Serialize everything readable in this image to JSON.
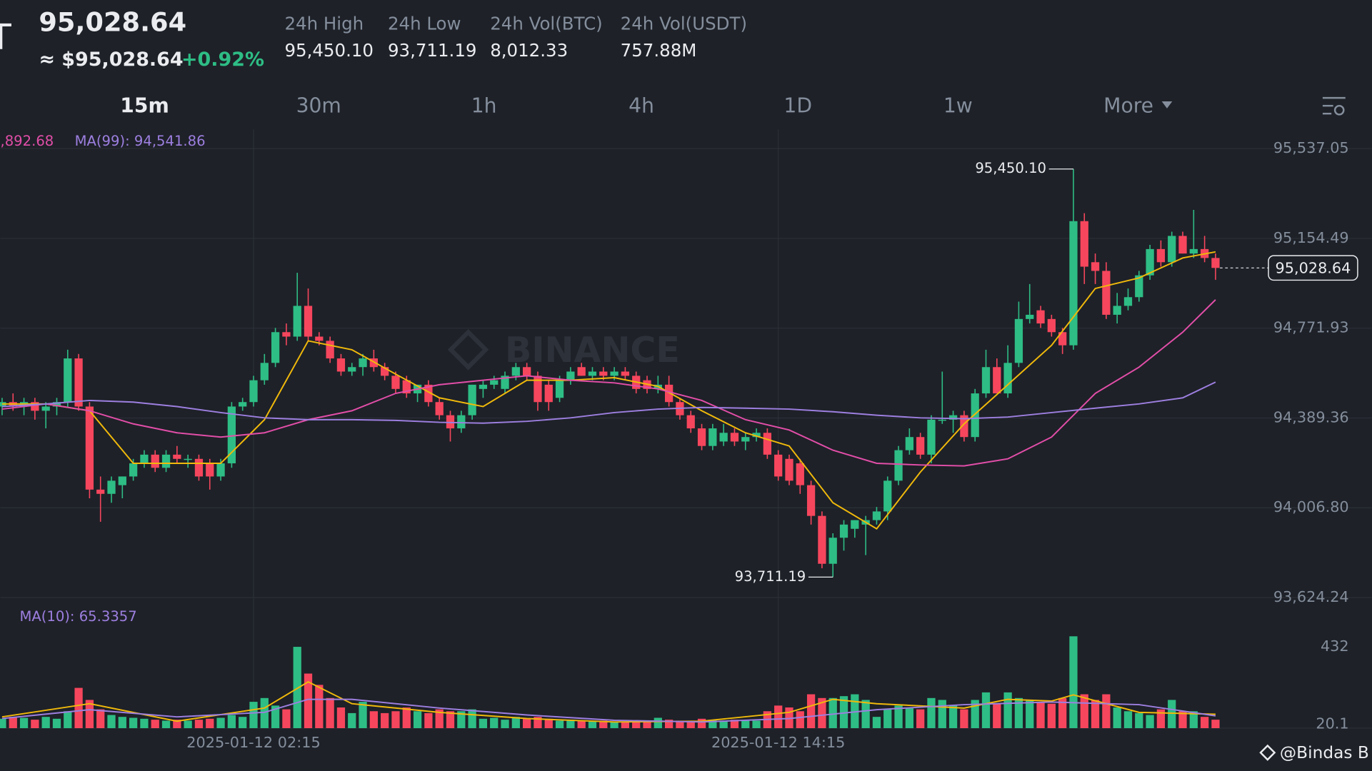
{
  "header": {
    "symbol_fragment": "T",
    "price": "95,028.64",
    "price_usd": "≈ $95,028.64",
    "change": "+0.92%",
    "stats": [
      {
        "label": "24h High",
        "value": "95,450.10"
      },
      {
        "label": "24h Low",
        "value": "93,711.19"
      },
      {
        "label": "24h Vol(BTC)",
        "value": "8,012.33"
      },
      {
        "label": "24h Vol(USDT)",
        "value": "757.88M"
      }
    ]
  },
  "timeframes": [
    "15m",
    "30m",
    "1h",
    "4h",
    "1D",
    "1w",
    "More"
  ],
  "footer": "@Bindas B",
  "chart_data": {
    "type": "candlestick",
    "watermark": "BINANCE",
    "up_color": "#2ebd85",
    "down_color": "#f6465d",
    "ylim": [
      93589,
      95619
    ],
    "yticks": [
      {
        "value": 95537.05,
        "label": "95,537.05"
      },
      {
        "value": 95154.49,
        "label": "95,154.49"
      },
      {
        "value": 94771.93,
        "label": "94,771.93"
      },
      {
        "value": 94389.36,
        "label": "94,389.36"
      },
      {
        "value": 94006.8,
        "label": "94,006.80"
      },
      {
        "value": 93624.24,
        "label": "93,624.24"
      }
    ],
    "grid": true,
    "current_price": 95028.64,
    "current_price_label": "95,028.64",
    "annotations": [
      {
        "value": 95450.1,
        "label": "95,450.10"
      },
      {
        "value": 93711.19,
        "label": "93,711.19"
      }
    ],
    "ma_labels": [
      {
        "text": ",892.68",
        "color": "#e24ea8"
      },
      {
        "text": "MA(99): 94,541.86",
        "color": "#9d7fe0"
      }
    ],
    "categories": [
      null,
      null,
      null,
      null,
      null,
      null,
      null,
      null,
      null,
      null,
      null,
      null,
      null,
      null,
      null,
      null,
      null,
      null,
      null,
      null,
      null,
      null,
      null,
      "2025-01-12 02:15",
      null,
      null,
      null,
      null,
      null,
      null,
      null,
      null,
      null,
      null,
      null,
      null,
      null,
      null,
      null,
      null,
      null,
      null,
      null,
      null,
      null,
      null,
      null,
      null,
      null,
      null,
      null,
      null,
      null,
      null,
      null,
      null,
      null,
      null,
      null,
      null,
      null,
      null,
      null,
      null,
      null,
      null,
      null,
      null,
      null,
      null,
      null,
      "2025-01-12 14:15",
      null,
      null,
      null,
      null,
      null,
      null,
      null,
      null,
      null,
      null,
      null,
      null,
      null,
      null,
      null,
      null,
      null,
      null,
      null,
      null,
      null,
      null,
      null,
      null,
      null,
      null,
      null,
      null,
      null,
      null,
      null,
      null,
      null,
      null,
      null,
      null,
      null,
      null,
      null,
      null
    ],
    "ohlc": [
      [
        94438,
        94475,
        94401,
        94457
      ],
      [
        94457,
        94494,
        94420,
        94438
      ],
      [
        94438,
        94475,
        94401,
        94457
      ],
      [
        94457,
        94475,
        94382,
        94420
      ],
      [
        94420,
        94457,
        94345,
        94438
      ],
      [
        94438,
        94475,
        94401,
        94457
      ],
      [
        94457,
        94680,
        94438,
        94643
      ],
      [
        94643,
        94662,
        94420,
        94438
      ],
      [
        94438,
        94457,
        94047,
        94084
      ],
      [
        94084,
        94140,
        93947,
        94066
      ],
      [
        94066,
        94140,
        94028,
        94122
      ],
      [
        94103,
        94140,
        94047,
        94140
      ],
      [
        94140,
        94215,
        94122,
        94196
      ],
      [
        94196,
        94252,
        94177,
        94233
      ],
      [
        94233,
        94252,
        94159,
        94177
      ],
      [
        94177,
        94252,
        94159,
        94233
      ],
      [
        94233,
        94270,
        94196,
        94215
      ],
      [
        94215,
        94233,
        94177,
        94215
      ],
      [
        94215,
        94233,
        94122,
        94140
      ],
      [
        94196,
        94215,
        94084,
        94140
      ],
      [
        94140,
        94215,
        94122,
        94196
      ],
      [
        94196,
        94457,
        94177,
        94438
      ],
      [
        94438,
        94475,
        94420,
        94457
      ],
      [
        94457,
        94569,
        94438,
        94550
      ],
      [
        94550,
        94662,
        94531,
        94624
      ],
      [
        94624,
        94773,
        94606,
        94755
      ],
      [
        94755,
        94792,
        94699,
        94736
      ],
      [
        94736,
        95008,
        94718,
        94867
      ],
      [
        94867,
        94941,
        94718,
        94736
      ],
      [
        94736,
        94755,
        94699,
        94718
      ],
      [
        94718,
        94736,
        94624,
        94643
      ],
      [
        94643,
        94662,
        94569,
        94587
      ],
      [
        94587,
        94624,
        94569,
        94606
      ],
      [
        94606,
        94662,
        94569,
        94643
      ],
      [
        94643,
        94680,
        94587,
        94606
      ],
      [
        94606,
        94624,
        94550,
        94569
      ],
      [
        94569,
        94587,
        94494,
        94513
      ],
      [
        94550,
        94569,
        94475,
        94494
      ],
      [
        94494,
        94531,
        94457,
        94531
      ],
      [
        94531,
        94550,
        94438,
        94457
      ],
      [
        94457,
        94475,
        94382,
        94401
      ],
      [
        94401,
        94420,
        94289,
        94345
      ],
      [
        94345,
        94420,
        94326,
        94401
      ],
      [
        94401,
        94531,
        94382,
        94531
      ],
      [
        94513,
        94550,
        94475,
        94531
      ],
      [
        94531,
        94569,
        94513,
        94550
      ],
      [
        94513,
        94587,
        94494,
        94569
      ],
      [
        94569,
        94624,
        94550,
        94606
      ],
      [
        94606,
        94624,
        94550,
        94569
      ],
      [
        94569,
        94587,
        94420,
        94457
      ],
      [
        94531,
        94550,
        94420,
        94457
      ],
      [
        94475,
        94569,
        94457,
        94550
      ],
      [
        94550,
        94606,
        94531,
        94587
      ],
      [
        94606,
        94624,
        94569,
        94569
      ],
      [
        94569,
        94606,
        94550,
        94587
      ],
      [
        94587,
        94606,
        94550,
        94569
      ],
      [
        94569,
        94606,
        94550,
        94587
      ],
      [
        94587,
        94606,
        94550,
        94569
      ],
      [
        94569,
        94587,
        94494,
        94513
      ],
      [
        94550,
        94569,
        94494,
        94513
      ],
      [
        94513,
        94569,
        94494,
        94531
      ],
      [
        94531,
        94569,
        94438,
        94457
      ],
      [
        94457,
        94475,
        94382,
        94401
      ],
      [
        94401,
        94420,
        94326,
        94345
      ],
      [
        94345,
        94364,
        94252,
        94270
      ],
      [
        94270,
        94364,
        94252,
        94345
      ],
      [
        94289,
        94364,
        94270,
        94326
      ],
      [
        94326,
        94345,
        94270,
        94289
      ],
      [
        94289,
        94326,
        94252,
        94308
      ],
      [
        94308,
        94345,
        94289,
        94326
      ],
      [
        94326,
        94345,
        94215,
        94233
      ],
      [
        94233,
        94252,
        94122,
        94140
      ],
      [
        94215,
        94233,
        94103,
        94122
      ],
      [
        94196,
        94215,
        94066,
        94103
      ],
      [
        94103,
        94122,
        93935,
        93972
      ],
      [
        93972,
        93991,
        93749,
        93768
      ],
      [
        93768,
        93898,
        93711.19,
        93879
      ],
      [
        93879,
        93954,
        93824,
        93935
      ],
      [
        93917,
        93954,
        93879,
        93954
      ],
      [
        93935,
        93972,
        93805,
        93954
      ],
      [
        93954,
        94010,
        93935,
        93991
      ],
      [
        93991,
        94140,
        93954,
        94122
      ],
      [
        94122,
        94270,
        94103,
        94252
      ],
      [
        94252,
        94345,
        94233,
        94308
      ],
      [
        94308,
        94326,
        94215,
        94233
      ],
      [
        94233,
        94401,
        94196,
        94382
      ],
      [
        94382,
        94587,
        94364,
        94382
      ],
      [
        94382,
        94420,
        94326,
        94401
      ],
      [
        94401,
        94420,
        94289,
        94308
      ],
      [
        94308,
        94513,
        94289,
        94494
      ],
      [
        94494,
        94680,
        94475,
        94606
      ],
      [
        94606,
        94643,
        94494,
        94494
      ],
      [
        94494,
        94699,
        94475,
        94624
      ],
      [
        94624,
        94885,
        94606,
        94811
      ],
      [
        94811,
        94960,
        94792,
        94829
      ],
      [
        94848,
        94867,
        94773,
        94792
      ],
      [
        94811,
        94829,
        94736,
        94755
      ],
      [
        94755,
        94773,
        94662,
        94699
      ],
      [
        94699,
        95450.1,
        94680,
        95228
      ],
      [
        95228,
        95262,
        94960,
        95034
      ],
      [
        95053,
        95090,
        94960,
        95016
      ],
      [
        95016,
        95053,
        94811,
        94829
      ],
      [
        94829,
        94922,
        94792,
        94867
      ],
      [
        94867,
        94941,
        94848,
        94904
      ],
      [
        94904,
        95016,
        94885,
        94997
      ],
      [
        94997,
        95127,
        94978,
        95109
      ],
      [
        95109,
        95146,
        95034,
        95053
      ],
      [
        95053,
        95183,
        95034,
        95165
      ],
      [
        95165,
        95183,
        95090,
        95090
      ],
      [
        95090,
        95276,
        95071,
        95109
      ],
      [
        95109,
        95165,
        95053,
        95071
      ],
      [
        95071,
        95090,
        94978,
        95028.64
      ]
    ],
    "ma_lines": [
      {
        "color": "#f0b90b",
        "x": [
          0,
          4,
          8,
          12,
          16,
          20,
          24,
          28,
          32,
          36,
          40,
          44,
          48,
          52,
          56,
          60,
          64,
          68,
          72,
          76,
          80,
          84,
          88,
          92,
          96,
          100,
          104,
          108,
          111
        ],
        "values": [
          94449,
          94449,
          94420,
          94196,
          94196,
          94196,
          94382,
          94718,
          94680,
          94576,
          94475,
          94438,
          94550,
          94550,
          94561,
          94524,
          94420,
          94326,
          94270,
          94028,
          93917,
          94159,
          94364,
          94531,
          94699,
          94941,
          94986,
          95071,
          95097
        ]
      },
      {
        "color": "#e24ea8",
        "x": [
          0,
          4,
          8,
          12,
          16,
          20,
          24,
          28,
          32,
          36,
          40,
          44,
          48,
          52,
          56,
          60,
          64,
          68,
          72,
          76,
          80,
          84,
          88,
          92,
          96,
          100,
          104,
          108,
          111
        ],
        "values": [
          94427,
          94449,
          94420,
          94364,
          94326,
          94308,
          94326,
          94382,
          94420,
          94494,
          94531,
          94550,
          94569,
          94550,
          94539,
          94513,
          94464,
          94382,
          94338,
          94252,
          94196,
          94189,
          94185,
          94215,
          94308,
          94494,
          94606,
          94755,
          94893
        ]
      },
      {
        "color": "#9d7fe0",
        "x": [
          0,
          4,
          8,
          12,
          16,
          20,
          24,
          28,
          32,
          36,
          40,
          44,
          48,
          52,
          56,
          60,
          64,
          68,
          72,
          76,
          80,
          84,
          88,
          92,
          96,
          100,
          104,
          108,
          111
        ],
        "values": [
          94438,
          94449,
          94464,
          94457,
          94438,
          94412,
          94390,
          94382,
          94382,
          94379,
          94371,
          94367,
          94375,
          94390,
          94412,
          94427,
          94434,
          94431,
          94427,
          94416,
          94401,
          94390,
          94386,
          94393,
          94412,
          94431,
          94449,
          94475,
          94542
        ]
      }
    ],
    "volume": {
      "ylim": [
        0,
        650
      ],
      "yticks": [
        432,
        20.1
      ],
      "ma_label": "MA(10): 65.3357",
      "ma_label_color": "#9d7fe0",
      "values": [
        50,
        60,
        55,
        45,
        60,
        50,
        90,
        214,
        150,
        100,
        70,
        60,
        55,
        50,
        45,
        40,
        45,
        40,
        45,
        50,
        55,
        70,
        60,
        140,
        160,
        120,
        100,
        432,
        290,
        230,
        160,
        110,
        80,
        140,
        90,
        80,
        90,
        110,
        90,
        80,
        100,
        90,
        90,
        100,
        50,
        55,
        45,
        60,
        50,
        60,
        50,
        40,
        45,
        40,
        35,
        40,
        35,
        35,
        40,
        35,
        55,
        45,
        40,
        40,
        50,
        45,
        40,
        45,
        40,
        40,
        90,
        120,
        110,
        90,
        180,
        160,
        160,
        170,
        180,
        150,
        60,
        100,
        120,
        110,
        100,
        160,
        150,
        120,
        100,
        150,
        190,
        130,
        190,
        160,
        150,
        140,
        130,
        160,
        488,
        180,
        150,
        180,
        110,
        90,
        80,
        70,
        100,
        150,
        90,
        90,
        60,
        45
      ],
      "lines": [
        {
          "color": "#f0b90b",
          "x": [
            0,
            8,
            16,
            24,
            28,
            32,
            40,
            48,
            56,
            64,
            72,
            76,
            80,
            88,
            92,
            96,
            98,
            104,
            111
          ],
          "values": [
            60,
            130,
            37,
            107,
            246,
            130,
            84,
            51,
            33,
            37,
            84,
            153,
            130,
            107,
            153,
            144,
            177,
            84,
            74
          ]
        },
        {
          "color": "#9d7fe0",
          "x": [
            0,
            8,
            16,
            24,
            28,
            32,
            40,
            48,
            56,
            64,
            72,
            80,
            88,
            96,
            104,
            111
          ],
          "values": [
            51,
            98,
            60,
            84,
            153,
            153,
            107,
            70,
            42,
            33,
            51,
            98,
            125,
            139,
            125,
            65.3357
          ]
        }
      ]
    }
  }
}
